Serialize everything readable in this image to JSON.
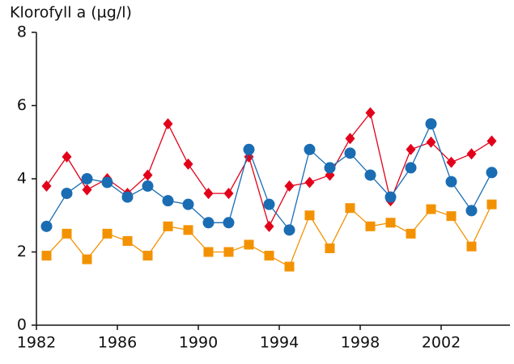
{
  "chart_data": {
    "type": "line",
    "title": "Klorofyll a (µg/l)",
    "x": [
      1982.5,
      1983.5,
      1984.5,
      1985.5,
      1986.5,
      1987.5,
      1988.5,
      1989.5,
      1990.5,
      1991.5,
      1992.5,
      1993.5,
      1994.5,
      1995.5,
      1996.5,
      1997.5,
      1998.5,
      1999.5,
      2000.5,
      2001.5,
      2002.5,
      2003.5,
      2004.5
    ],
    "series": [
      {
        "color": "#e2001a",
        "marker": "diamond",
        "values": [
          3.8,
          4.6,
          3.7,
          4.0,
          3.6,
          4.1,
          5.5,
          4.4,
          3.6,
          3.6,
          4.6,
          2.7,
          3.8,
          3.9,
          4.1,
          5.1,
          5.8,
          3.4,
          4.8,
          5.0,
          4.45,
          4.68,
          5.03
        ]
      },
      {
        "color": "#1a6db3",
        "marker": "circle",
        "values": [
          2.7,
          3.6,
          4.0,
          3.9,
          3.5,
          3.8,
          3.4,
          3.3,
          2.8,
          2.8,
          4.8,
          3.3,
          2.6,
          4.8,
          4.3,
          4.7,
          4.1,
          3.5,
          4.3,
          5.5,
          3.92,
          3.13,
          4.17
        ]
      },
      {
        "color": "#f39200",
        "marker": "square",
        "values": [
          1.9,
          2.5,
          1.8,
          2.5,
          2.3,
          1.9,
          2.7,
          2.6,
          2.0,
          2.0,
          2.2,
          1.9,
          1.6,
          3.0,
          2.1,
          3.2,
          2.7,
          2.8,
          2.5,
          3.17,
          2.98,
          2.15,
          3.3
        ]
      }
    ],
    "xlim": [
      1982,
      2005.4
    ],
    "xticks": [
      1982,
      1986,
      1990,
      1994,
      1998,
      2002
    ],
    "ylim": [
      0,
      8
    ],
    "yticks": [
      0,
      2,
      4,
      6,
      8
    ]
  }
}
